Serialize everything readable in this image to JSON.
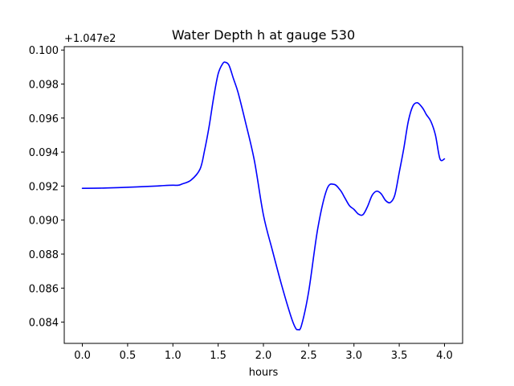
{
  "chart_data": {
    "type": "line",
    "title": "Water Depth h at gauge 530",
    "xlabel": "hours",
    "ylabel": "",
    "y_offset_label": "+1.047e2",
    "xlim": [
      -0.2,
      4.2
    ],
    "ylim": [
      0.08275,
      0.1002
    ],
    "xticks": [
      0.0,
      0.5,
      1.0,
      1.5,
      2.0,
      2.5,
      3.0,
      3.5,
      4.0
    ],
    "xtick_labels": [
      "0.0",
      "0.5",
      "1.0",
      "1.5",
      "2.0",
      "2.5",
      "3.0",
      "3.5",
      "4.0"
    ],
    "yticks": [
      0.084,
      0.086,
      0.088,
      0.09,
      0.092,
      0.094,
      0.096,
      0.098,
      0.1
    ],
    "ytick_labels": [
      "0.084",
      "0.086",
      "0.088",
      "0.090",
      "0.092",
      "0.094",
      "0.096",
      "0.098",
      "0.100"
    ],
    "grid": false,
    "line_color": "#0000ff",
    "series": [
      {
        "x": [
          0.0,
          0.2,
          0.4,
          0.6,
          0.8,
          0.9,
          1.0,
          1.06,
          1.1,
          1.2,
          1.3,
          1.35,
          1.4,
          1.45,
          1.5,
          1.55,
          1.58,
          1.62,
          1.67,
          1.72,
          1.8,
          1.9,
          2.0,
          2.1,
          2.2,
          2.3,
          2.35,
          2.38,
          2.42,
          2.5,
          2.6,
          2.7,
          2.78,
          2.85,
          2.9,
          2.95,
          3.0,
          3.05,
          3.1,
          3.15,
          3.2,
          3.25,
          3.3,
          3.35,
          3.4,
          3.45,
          3.5,
          3.55,
          3.6,
          3.65,
          3.7,
          3.75,
          3.78,
          3.8,
          3.85,
          3.9,
          3.95,
          4.0
        ],
        "y": [
          0.09187,
          0.09188,
          0.09191,
          0.09195,
          0.092,
          0.09203,
          0.09205,
          0.09205,
          0.09212,
          0.09235,
          0.093,
          0.0941,
          0.0955,
          0.0972,
          0.0986,
          0.0992,
          0.09928,
          0.0991,
          0.0983,
          0.0975,
          0.0958,
          0.0935,
          0.0903,
          0.0882,
          0.0862,
          0.0844,
          0.0837,
          0.08356,
          0.0838,
          0.0858,
          0.0895,
          0.0918,
          0.0921,
          0.09175,
          0.0913,
          0.09085,
          0.09063,
          0.09035,
          0.09032,
          0.0908,
          0.09145,
          0.0917,
          0.09155,
          0.09115,
          0.09103,
          0.09145,
          0.0928,
          0.0942,
          0.0958,
          0.0967,
          0.0969,
          0.09665,
          0.0964,
          0.0962,
          0.0958,
          0.095,
          0.0936,
          0.0936
        ]
      }
    ]
  }
}
